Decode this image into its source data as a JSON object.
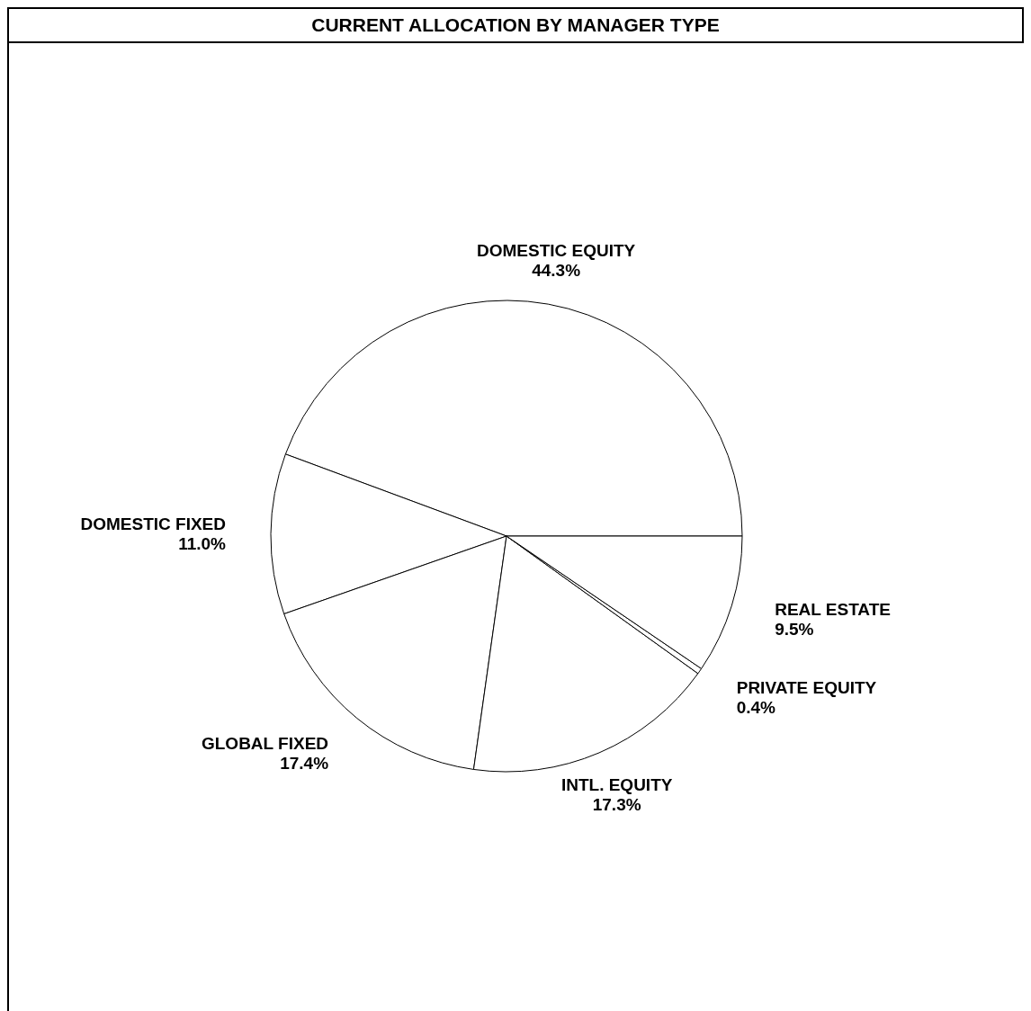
{
  "chart_data": {
    "type": "pie",
    "title": "CURRENT ALLOCATION BY MANAGER TYPE",
    "categories": [
      "DOMESTIC EQUITY",
      "DOMESTIC FIXED",
      "GLOBAL FIXED",
      "INTL. EQUITY",
      "PRIVATE EQUITY",
      "REAL ESTATE"
    ],
    "values": [
      44.3,
      11.0,
      17.4,
      17.3,
      0.4,
      9.5
    ],
    "value_labels": [
      "44.3%",
      "11.0%",
      "17.4%",
      "17.3%",
      "0.4%",
      "9.5%"
    ],
    "colors": [
      "#ffffff",
      "#ffffff",
      "#ffffff",
      "#ffffff",
      "#ffffff",
      "#ffffff"
    ],
    "legend": false
  }
}
